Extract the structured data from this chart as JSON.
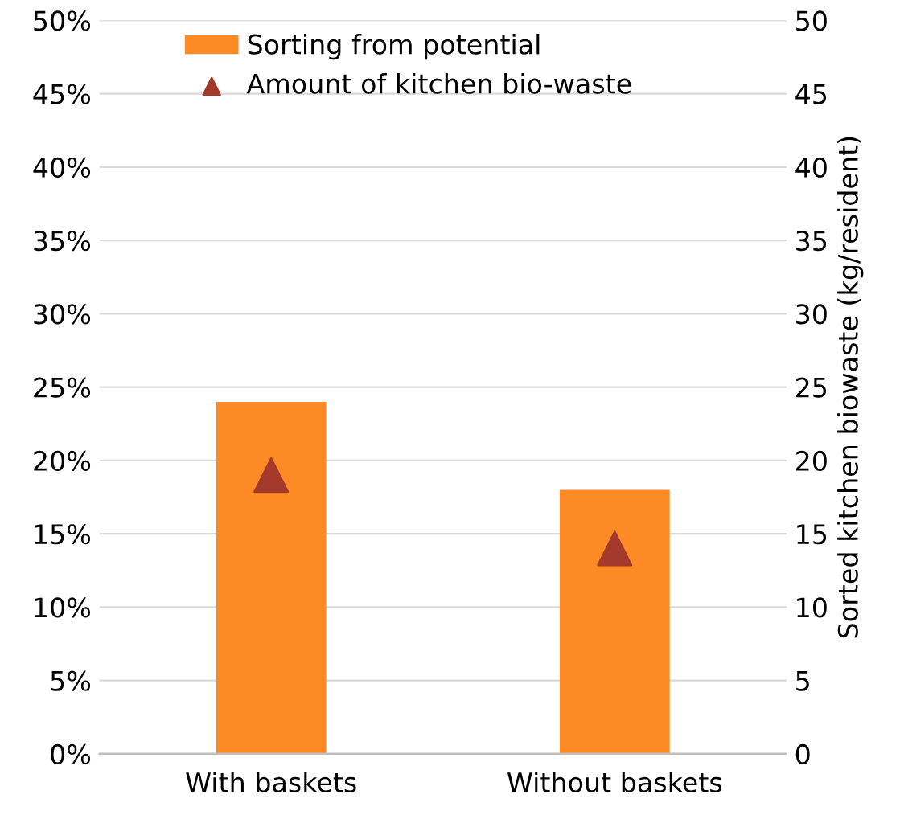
{
  "chart_data": {
    "type": "bar",
    "categories": [
      "With baskets",
      "Without baskets"
    ],
    "series": [
      {
        "name": "Sorting from potential",
        "color": "#fd8b25",
        "values": [
          24,
          18
        ]
      },
      {
        "name": "Amount of kitchen bio-waste",
        "type": "scatter",
        "axis": "y2",
        "marker": "triangle",
        "color": "#a33a2c",
        "values": [
          19,
          14
        ]
      }
    ],
    "ylim": [
      0,
      50
    ],
    "yticks": [
      {
        "value": 0,
        "label": "0%"
      },
      {
        "value": 5,
        "label": "5%"
      },
      {
        "value": 10,
        "label": "10%"
      },
      {
        "value": 15,
        "label": "15%"
      },
      {
        "value": 20,
        "label": "20%"
      },
      {
        "value": 25,
        "label": "25%"
      },
      {
        "value": 30,
        "label": "30%"
      },
      {
        "value": 35,
        "label": "35%"
      },
      {
        "value": 40,
        "label": "40%"
      },
      {
        "value": 45,
        "label": "45%"
      },
      {
        "value": 50,
        "label": "50%"
      }
    ],
    "y2lim": [
      0,
      50
    ],
    "y2ticks": [
      0,
      5,
      10,
      15,
      20,
      25,
      30,
      35,
      40,
      45,
      50
    ],
    "y2label": "Sorted kitchen biowaste (kg/resident)",
    "grid": "y",
    "legend": "top"
  }
}
